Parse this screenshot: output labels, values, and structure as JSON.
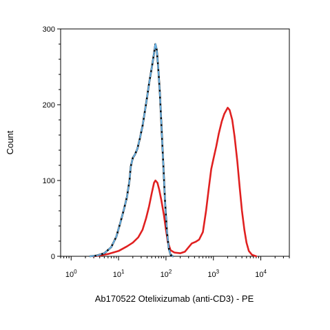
{
  "chart_data": {
    "type": "line",
    "title": "",
    "xlabel": "Ab170522 Otelixizumab (anti-CD3) - PE",
    "ylabel": "Count",
    "x_scale": "log",
    "xlim": [
      0.6,
      40000
    ],
    "ylim": [
      0,
      300
    ],
    "x_ticks": [
      {
        "value": 1,
        "base": "10",
        "exp": "0"
      },
      {
        "value": 10,
        "base": "10",
        "exp": "1"
      },
      {
        "value": 100,
        "base": "10",
        "exp": "2"
      },
      {
        "value": 1000,
        "base": "10",
        "exp": "3"
      },
      {
        "value": 10000,
        "base": "10",
        "exp": "4"
      }
    ],
    "y_ticks": [
      {
        "value": 0,
        "label": "0"
      },
      {
        "value": 100,
        "label": "100"
      },
      {
        "value": 200,
        "label": "200"
      },
      {
        "value": 300,
        "label": "300"
      }
    ],
    "grid": false,
    "legend": "none",
    "series": [
      {
        "color": "#e02020",
        "style": "solid",
        "points": [
          [
            2.9,
            0
          ],
          [
            4,
            1
          ],
          [
            6,
            3
          ],
          [
            10,
            7
          ],
          [
            15,
            13
          ],
          [
            20,
            18
          ],
          [
            26,
            25
          ],
          [
            32,
            35
          ],
          [
            38,
            50
          ],
          [
            44,
            66
          ],
          [
            50,
            83
          ],
          [
            56,
            97
          ],
          [
            60,
            100
          ],
          [
            66,
            97
          ],
          [
            72,
            88
          ],
          [
            80,
            74
          ],
          [
            90,
            55
          ],
          [
            100,
            35
          ],
          [
            110,
            18
          ],
          [
            125,
            8
          ],
          [
            150,
            5
          ],
          [
            200,
            4
          ],
          [
            250,
            6
          ],
          [
            300,
            12
          ],
          [
            350,
            17
          ],
          [
            420,
            19
          ],
          [
            500,
            22
          ],
          [
            600,
            32
          ],
          [
            700,
            60
          ],
          [
            800,
            90
          ],
          [
            900,
            115
          ],
          [
            1000,
            128
          ],
          [
            1150,
            145
          ],
          [
            1300,
            162
          ],
          [
            1500,
            178
          ],
          [
            1700,
            188
          ],
          [
            2000,
            196
          ],
          [
            2200,
            193
          ],
          [
            2500,
            180
          ],
          [
            2800,
            158
          ],
          [
            3200,
            125
          ],
          [
            3600,
            90
          ],
          [
            4000,
            60
          ],
          [
            4500,
            35
          ],
          [
            5000,
            18
          ],
          [
            5600,
            7
          ],
          [
            6500,
            2
          ],
          [
            8000,
            0
          ]
        ]
      },
      {
        "color": "#000000",
        "style": "solid",
        "points": [
          [
            2.5,
            0
          ],
          [
            3.5,
            1
          ],
          [
            5,
            4
          ],
          [
            7,
            12
          ],
          [
            9,
            26
          ],
          [
            11,
            45
          ],
          [
            13,
            62
          ],
          [
            15,
            78
          ],
          [
            17,
            100
          ],
          [
            18,
            118
          ],
          [
            20,
            130
          ],
          [
            22,
            134
          ],
          [
            25,
            142
          ],
          [
            28,
            155
          ],
          [
            32,
            172
          ],
          [
            36,
            192
          ],
          [
            40,
            210
          ],
          [
            44,
            228
          ],
          [
            48,
            242
          ],
          [
            52,
            255
          ],
          [
            56,
            268
          ],
          [
            60,
            280
          ],
          [
            64,
            272
          ],
          [
            68,
            252
          ],
          [
            74,
            218
          ],
          [
            80,
            175
          ],
          [
            88,
            120
          ],
          [
            96,
            70
          ],
          [
            105,
            32
          ],
          [
            115,
            10
          ],
          [
            125,
            2
          ],
          [
            140,
            0
          ]
        ]
      },
      {
        "color": "#6ab4e8",
        "style": "dashed",
        "points": [
          [
            2.5,
            0
          ],
          [
            3.5,
            1
          ],
          [
            5,
            4
          ],
          [
            7,
            12
          ],
          [
            9,
            26
          ],
          [
            11,
            45
          ],
          [
            13,
            62
          ],
          [
            15,
            78
          ],
          [
            17,
            100
          ],
          [
            18,
            118
          ],
          [
            20,
            130
          ],
          [
            22,
            134
          ],
          [
            25,
            142
          ],
          [
            28,
            155
          ],
          [
            32,
            172
          ],
          [
            36,
            192
          ],
          [
            40,
            210
          ],
          [
            44,
            228
          ],
          [
            48,
            242
          ],
          [
            52,
            255
          ],
          [
            56,
            268
          ],
          [
            60,
            281
          ],
          [
            64,
            272
          ],
          [
            68,
            252
          ],
          [
            74,
            218
          ],
          [
            80,
            175
          ],
          [
            88,
            120
          ],
          [
            96,
            70
          ],
          [
            105,
            32
          ],
          [
            115,
            10
          ],
          [
            125,
            2
          ],
          [
            140,
            0
          ]
        ]
      }
    ]
  }
}
